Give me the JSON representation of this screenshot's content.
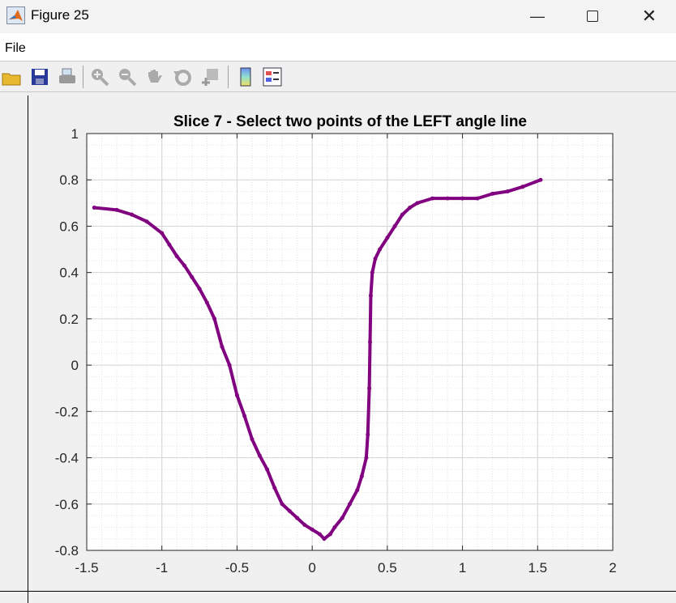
{
  "window": {
    "title": "Figure 25",
    "minimize_icon": "minimize-icon",
    "maximize_icon": "maximize-icon",
    "close_icon": "close-icon"
  },
  "menu": {
    "file": "File"
  },
  "toolbar": {
    "icons": [
      "open-folder-icon",
      "save-icon",
      "print-icon",
      "zoom-in-icon",
      "zoom-out-icon",
      "pan-hand-icon",
      "rotate-icon",
      "data-cursor-icon",
      "colorbar-icon",
      "legend-icon"
    ]
  },
  "chart_data": {
    "type": "scatter",
    "title": "Slice 7 - Select two points of the LEFT angle line",
    "xlabel": "",
    "ylabel": "",
    "xlim": [
      -1.5,
      2
    ],
    "ylim": [
      -0.8,
      1
    ],
    "xticks": [
      "-1.5",
      "-1",
      "-0.5",
      "0",
      "0.5",
      "1",
      "1.5",
      "2"
    ],
    "yticks": [
      "1",
      "0.8",
      "0.6",
      "0.4",
      "0.2",
      "0",
      "-0.2",
      "-0.4",
      "-0.6",
      "-0.8"
    ],
    "grid": true,
    "minor_grid": true,
    "color": "#800080",
    "x": [
      -1.45,
      -1.3,
      -1.2,
      -1.1,
      -1.0,
      -0.95,
      -0.9,
      -0.85,
      -0.8,
      -0.75,
      -0.7,
      -0.65,
      -0.6,
      -0.55,
      -0.5,
      -0.45,
      -0.4,
      -0.35,
      -0.3,
      -0.25,
      -0.2,
      -0.15,
      -0.1,
      -0.05,
      0,
      0.05,
      0.08,
      0.12,
      0.15,
      0.2,
      0.25,
      0.3,
      0.33,
      0.36,
      0.37,
      0.38,
      0.385,
      0.39,
      0.4,
      0.42,
      0.45,
      0.5,
      0.55,
      0.6,
      0.65,
      0.7,
      0.8,
      0.9,
      1.0,
      1.1,
      1.2,
      1.3,
      1.4,
      1.52
    ],
    "y": [
      0.68,
      0.67,
      0.65,
      0.62,
      0.57,
      0.52,
      0.47,
      0.43,
      0.38,
      0.33,
      0.27,
      0.2,
      0.08,
      0.0,
      -0.13,
      -0.22,
      -0.32,
      -0.39,
      -0.45,
      -0.53,
      -0.6,
      -0.63,
      -0.66,
      -0.69,
      -0.71,
      -0.73,
      -0.75,
      -0.73,
      -0.7,
      -0.66,
      -0.6,
      -0.54,
      -0.48,
      -0.4,
      -0.3,
      -0.1,
      0.1,
      0.3,
      0.4,
      0.46,
      0.5,
      0.55,
      0.6,
      0.65,
      0.68,
      0.7,
      0.72,
      0.72,
      0.72,
      0.72,
      0.74,
      0.75,
      0.77,
      0.8
    ]
  }
}
